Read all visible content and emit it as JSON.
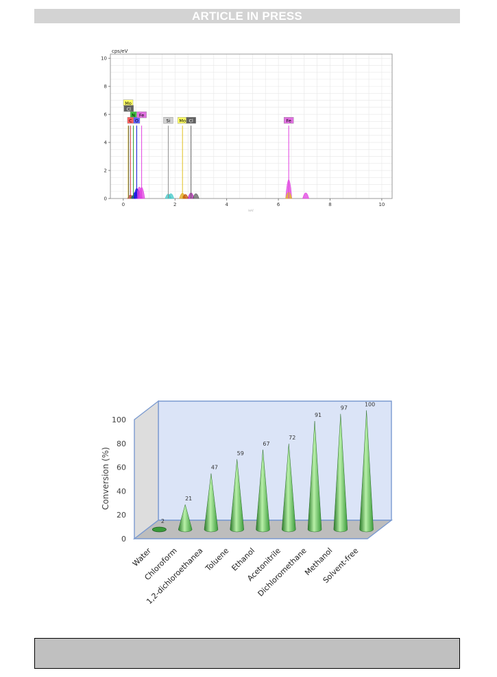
{
  "header": {
    "banner_text": "ARTICLE IN PRESS"
  },
  "chart_data": [
    {
      "type": "line",
      "ylabel": "cps/eV",
      "xlabel": "keV",
      "xlim": [
        -0.5,
        10.4
      ],
      "ylim": [
        0,
        10.3
      ],
      "x_ticks": [
        0,
        2,
        4,
        6,
        8,
        10
      ],
      "y_ticks": [
        0,
        2,
        4,
        6,
        8,
        10
      ],
      "grid": true,
      "series_colors": {
        "C": "#d23c3c",
        "N": "#2a9a2a",
        "O": "#1a1ae0",
        "Mo": "#e0c020",
        "Cl": "#606060",
        "Fe": "#e040e0",
        "Si": "#40c8c8"
      },
      "peaks": [
        {
          "x": 0.28,
          "y": 0.4,
          "color": "#d23c3c"
        },
        {
          "x": 0.39,
          "y": 0.35,
          "color": "#2a9a2a"
        },
        {
          "x": 0.46,
          "y": 0.8,
          "color": "#1a1ae0"
        },
        {
          "x": 0.52,
          "y": 1.35,
          "color": "#1a1ae0"
        },
        {
          "x": 0.56,
          "y": 1.2,
          "color": "#1a1ae0"
        },
        {
          "x": 0.62,
          "y": 1.55,
          "color": "#e040e0"
        },
        {
          "x": 0.71,
          "y": 1.5,
          "color": "#e040e0"
        },
        {
          "x": 1.74,
          "y": 0.55,
          "color": "#40c8c8"
        },
        {
          "x": 1.84,
          "y": 0.6,
          "color": "#40c8c8"
        },
        {
          "x": 2.29,
          "y": 0.65,
          "color": "#e0a020"
        },
        {
          "x": 2.4,
          "y": 0.5,
          "color": "#c05000"
        },
        {
          "x": 2.62,
          "y": 0.7,
          "color": "#b020b0"
        },
        {
          "x": 2.81,
          "y": 0.6,
          "color": "#606060"
        },
        {
          "x": 6.4,
          "y": 2.6,
          "color": "#e040e0"
        },
        {
          "x": 6.4,
          "y": 0.8,
          "color": "#e0c020"
        },
        {
          "x": 7.06,
          "y": 0.7,
          "color": "#e040e0"
        }
      ],
      "element_markers": [
        {
          "label": "Mo",
          "x": 0.19,
          "y": 5.2,
          "label_y": 6.8,
          "color": "#e0c020",
          "bg": "#ffff66",
          "fg": "#000000"
        },
        {
          "label": "Cl",
          "x": 0.21,
          "y": 5.2,
          "label_y": 6.4,
          "color": "#606060",
          "bg": "#606060",
          "fg": "#ffffff"
        },
        {
          "label": "N",
          "x": 0.39,
          "y": 5.2,
          "label_y": 5.95,
          "color": "#2a9a2a",
          "bg": "#40c040",
          "fg": "#000000"
        },
        {
          "label": "C",
          "x": 0.28,
          "y": 5.2,
          "label_y": 5.55,
          "color": "#d23c3c",
          "bg": "#ff6060",
          "fg": "#000000"
        },
        {
          "label": "O",
          "x": 0.52,
          "y": 5.2,
          "label_y": 5.55,
          "color": "#1a1ae0",
          "bg": "#6060ff",
          "fg": "#000000"
        },
        {
          "label": "Fe",
          "x": 0.71,
          "y": 5.2,
          "label_y": 5.95,
          "color": "#e040e0",
          "bg": "#e070e0",
          "fg": "#000000"
        },
        {
          "label": "Si",
          "x": 1.74,
          "y": 5.2,
          "label_y": 5.55,
          "color": "#909090",
          "bg": "#d0d0d0",
          "fg": "#000000"
        },
        {
          "label": "Mo",
          "x": 2.29,
          "y": 5.2,
          "label_y": 5.55,
          "color": "#e0c020",
          "bg": "#ffff66",
          "fg": "#000000"
        },
        {
          "label": "Cl",
          "x": 2.62,
          "y": 5.2,
          "label_y": 5.55,
          "color": "#606060",
          "bg": "#606060",
          "fg": "#ffffff"
        },
        {
          "label": "Fe",
          "x": 6.4,
          "y": 5.2,
          "label_y": 5.55,
          "color": "#e040e0",
          "bg": "#e070e0",
          "fg": "#000000"
        }
      ]
    },
    {
      "type": "bar",
      "ylabel": "Conversion (%)",
      "xlabel": "",
      "ylim": [
        0,
        100
      ],
      "y_ticks": [
        0,
        20,
        40,
        60,
        80,
        100
      ],
      "categories": [
        "Water",
        "Chloroform",
        "1,2-dichloroethanea",
        "Toluene",
        "Ethanol",
        "Acetonitrile",
        "Dichloromethane",
        "Methanol",
        "Solvent-free"
      ],
      "values": [
        2,
        21,
        47,
        59,
        67,
        72,
        91,
        97,
        100
      ],
      "data_labels": [
        "2",
        "21",
        "47",
        "59",
        "67",
        "72",
        "91",
        "97",
        "100"
      ],
      "colors": {
        "cone_dark": "#2f8a2f",
        "cone_light": "#b8f0a8",
        "wall": "#dbe4f7",
        "floor": "#bdbdbd",
        "frame": "#7a9ad0"
      }
    }
  ],
  "footer": {
    "box_text": ""
  }
}
